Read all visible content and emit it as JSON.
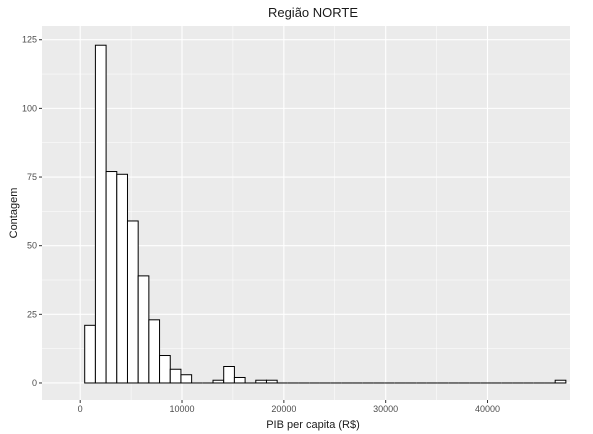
{
  "chart_data": {
    "type": "bar",
    "subtype": "histogram",
    "title": "Região  NORTE",
    "xlabel": "PIB per capita (R$)",
    "ylabel": "Contagem",
    "bin_width": 1050,
    "first_bin_center": 969,
    "counts": [
      21,
      123,
      77,
      76,
      59,
      39,
      23,
      10,
      5,
      3,
      0,
      0,
      1,
      6,
      2,
      0,
      1,
      1,
      0,
      0,
      0,
      0,
      0,
      0,
      0,
      0,
      0,
      0,
      0,
      0,
      0,
      0,
      0,
      0,
      0,
      0,
      0,
      0,
      0,
      0,
      0,
      0,
      0,
      0,
      1
    ],
    "xlim": [
      -3750,
      48100
    ],
    "ylim": [
      -6.2,
      130
    ],
    "x_ticks": [
      0,
      10000,
      20000,
      30000,
      40000
    ],
    "x_tick_labels": [
      "0",
      "10000",
      "20000",
      "30000",
      "40000"
    ],
    "y_ticks": [
      0,
      25,
      50,
      75,
      100,
      125
    ],
    "y_tick_labels": [
      "0",
      "25",
      "50",
      "75",
      "100",
      "125"
    ],
    "grid": true,
    "bar_fill": "#ffffff",
    "bar_stroke": "#000000",
    "panel_bg": "#ebebeb",
    "grid_color": "#ffffff"
  }
}
